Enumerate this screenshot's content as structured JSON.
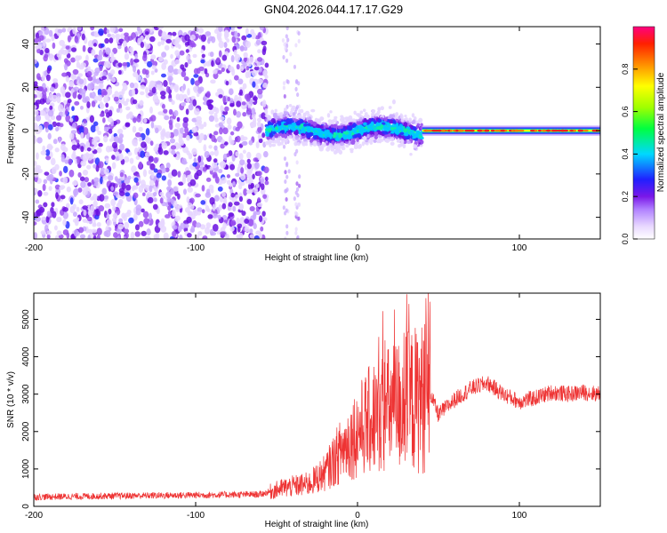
{
  "title": "GN04.2026.044.17.17.G29",
  "chart_data": [
    {
      "type": "heatmap",
      "xlabel": "Height of straight line (km)",
      "ylabel": "Frequency (Hz)",
      "xlim": [
        -200,
        150
      ],
      "ylim": [
        -50,
        48
      ],
      "xticks": [
        -200,
        -100,
        0,
        100
      ],
      "yticks": [
        -40,
        -20,
        0,
        20,
        40
      ],
      "colorbar": {
        "label": "Normalized spectral amplitude",
        "range": [
          0,
          1
        ],
        "ticks": [
          0.0,
          0.2,
          0.4,
          0.6,
          0.8
        ]
      },
      "regions": [
        {
          "name": "noise",
          "x_range": [
            -200,
            -56
          ],
          "y_range": [
            -50,
            48
          ],
          "amplitude": "low"
        },
        {
          "name": "sparse-noise",
          "x_range": [
            -55,
            -35
          ],
          "y_range": [
            -50,
            48
          ],
          "amplitude": "very low"
        },
        {
          "name": "signal-transition",
          "x_range": [
            -56,
            40
          ],
          "center_freq": 0,
          "freq_spread": 6,
          "peak_amplitude": 0.5
        },
        {
          "name": "strong-line",
          "x_range": [
            40,
            150
          ],
          "center_freq": 0,
          "freq_spread": 1.5,
          "peak_amplitude": 1.0
        }
      ]
    },
    {
      "type": "line",
      "xlabel": "Height of straight line (km)",
      "ylabel": "SNR (10 * v/v)",
      "xlim": [
        -200,
        150
      ],
      "ylim": [
        0,
        5700
      ],
      "xticks": [
        -200,
        -100,
        0,
        100
      ],
      "yticks": [
        0,
        1000,
        2000,
        3000,
        4000,
        5000
      ],
      "color": "#ee3333",
      "series": [
        {
          "name": "SNR",
          "x": [
            -200,
            -150,
            -100,
            -60,
            -45,
            -30,
            -20,
            -10,
            0,
            10,
            20,
            30,
            40,
            45,
            50,
            60,
            70,
            80,
            90,
            100,
            110,
            120,
            130,
            140,
            150
          ],
          "values": [
            250,
            280,
            300,
            320,
            500,
            600,
            900,
            1500,
            2000,
            2400,
            2600,
            2800,
            2900,
            3000,
            2450,
            2850,
            3150,
            3300,
            3000,
            2800,
            2900,
            3050,
            3000,
            3050,
            3000
          ]
        }
      ]
    }
  ]
}
